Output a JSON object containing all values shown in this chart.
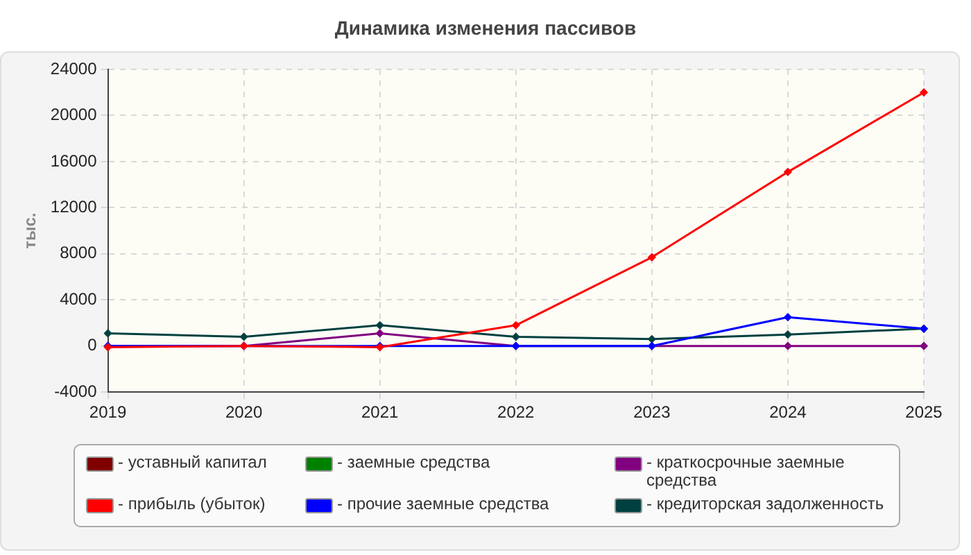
{
  "chart_data": {
    "type": "line",
    "title": "Динамика изменения пассивов",
    "ylabel": "тыс.",
    "categories": [
      "2019",
      "2020",
      "2021",
      "2022",
      "2023",
      "2024",
      "2025"
    ],
    "series": [
      {
        "name": "- уставный капитал",
        "color": "#800000",
        "values": [
          null,
          null,
          null,
          null,
          null,
          null,
          null
        ]
      },
      {
        "name": "- прибыль (убыток)",
        "color": "#ff0000",
        "values": [
          -100,
          0,
          -100,
          1800,
          7700,
          15100,
          22000
        ]
      },
      {
        "name": "- заемные средства",
        "color": "#008000",
        "values": [
          null,
          null,
          null,
          null,
          null,
          null,
          null
        ]
      },
      {
        "name": "- прочие заемные средства",
        "color": "#0000ff",
        "values": [
          0,
          0,
          0,
          0,
          0,
          2500,
          1500
        ]
      },
      {
        "name": "- краткосрочные заемные средства",
        "color": "#800080",
        "values": [
          0,
          0,
          1100,
          0,
          0,
          0,
          0
        ]
      },
      {
        "name": "- кредиторская задолженность",
        "color": "#004040",
        "values": [
          1100,
          800,
          1800,
          800,
          600,
          1000,
          1500
        ]
      }
    ],
    "ylim": [
      -4000,
      24000
    ],
    "yticks": [
      -4000,
      0,
      4000,
      8000,
      12000,
      16000,
      20000,
      24000
    ],
    "grid": true,
    "legend": "bottom",
    "marker": "diamond",
    "line_style": "solid"
  }
}
